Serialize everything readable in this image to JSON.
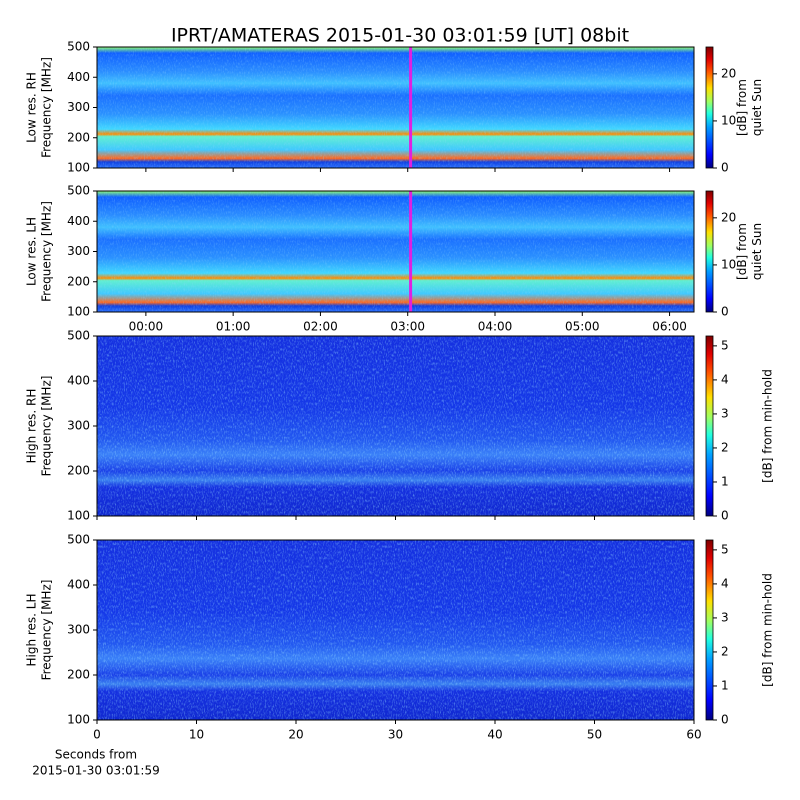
{
  "title": "IPRT/AMATERAS 2015-01-30 03:01:59 [UT]   08bit",
  "chart_data": [
    {
      "type": "heatmap",
      "variant": "low",
      "ylabel": [
        "Low res. RH",
        "Frequency [MHz]"
      ],
      "xlim": [
        -0.56,
        6.28
      ],
      "xticks": [
        0,
        1,
        2,
        3,
        4,
        5,
        6
      ],
      "ylim": [
        100,
        500
      ],
      "yticks": [
        100,
        200,
        300,
        400,
        500
      ],
      "marker_x": 3.0331,
      "marker_color": "#e020e0",
      "clim": [
        0,
        25.7
      ],
      "cticks": [
        0,
        10,
        20
      ],
      "colorbar_label": [
        "[dB] from",
        "quiet Sun"
      ]
    },
    {
      "type": "heatmap",
      "variant": "low",
      "ylabel": [
        "Low res. LH",
        "Frequency [MHz]"
      ],
      "xlim": [
        -0.56,
        6.28
      ],
      "xticks": [
        {
          "value": 0,
          "label": "00:00"
        },
        {
          "value": 1,
          "label": "01:00"
        },
        {
          "value": 2,
          "label": "02:00"
        },
        {
          "value": 3,
          "label": "03:00"
        },
        {
          "value": 4,
          "label": "04:00"
        },
        {
          "value": 5,
          "label": "05:00"
        },
        {
          "value": 6,
          "label": "06:00"
        }
      ],
      "ylim": [
        100,
        500
      ],
      "yticks": [
        100,
        200,
        300,
        400,
        500
      ],
      "marker_x": 3.0331,
      "marker_color": "#e020e0",
      "clim": [
        0,
        25.7
      ],
      "cticks": [
        0,
        10,
        20
      ],
      "colorbar_label": [
        "[dB] from",
        "quiet Sun"
      ]
    },
    {
      "type": "heatmap",
      "variant": "high",
      "ylabel": [
        "High res. RH",
        "Frequency [MHz]"
      ],
      "xlim": [
        0,
        60
      ],
      "xticks": [
        0,
        10,
        20,
        30,
        40,
        50,
        60
      ],
      "ylim": [
        100,
        500
      ],
      "yticks": [
        100,
        200,
        300,
        400,
        500
      ],
      "clim": [
        0,
        5.29
      ],
      "cticks": [
        0,
        1,
        2,
        3,
        4,
        5
      ],
      "colorbar_label": [
        "[dB] from min-hold"
      ]
    },
    {
      "type": "heatmap",
      "variant": "high",
      "ylabel": [
        "High res. LH",
        "Frequency [MHz]"
      ],
      "xlim": [
        0,
        60
      ],
      "xticks": [
        0,
        10,
        20,
        30,
        40,
        50,
        60
      ],
      "ylim": [
        100,
        500
      ],
      "yticks": [
        100,
        200,
        300,
        400,
        500
      ],
      "clim": [
        0,
        5.29
      ],
      "cticks": [
        0,
        1,
        2,
        3,
        4,
        5
      ],
      "colorbar_label": [
        "[dB] from min-hold"
      ],
      "xlabel": [
        "Seconds from",
        "2015-01-30 03:01:59"
      ]
    }
  ]
}
